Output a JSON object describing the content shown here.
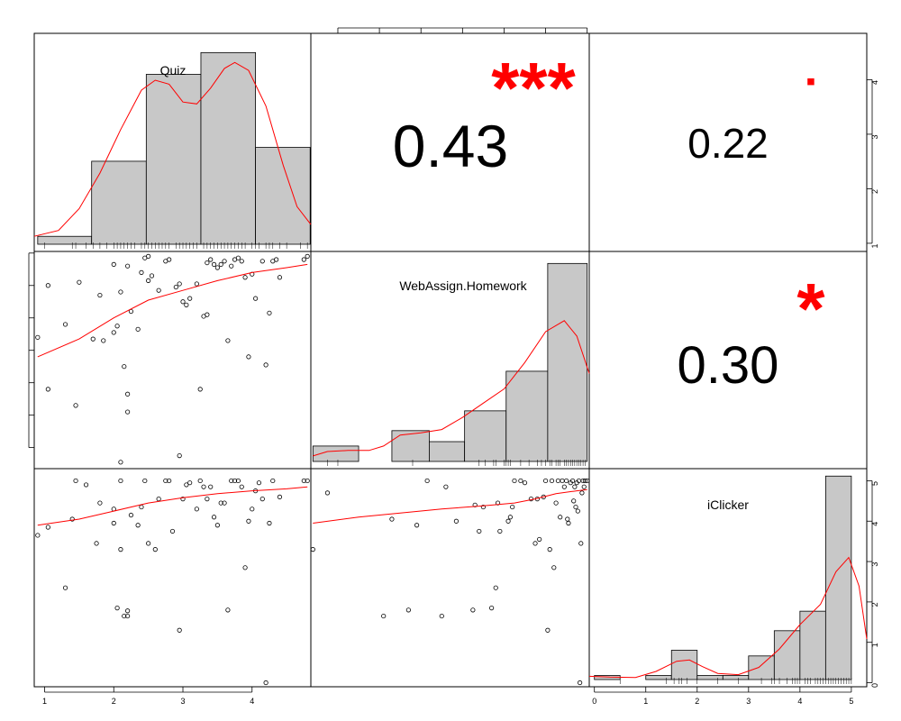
{
  "chart_data": {
    "type": "scatter-matrix",
    "variables": [
      "Quiz",
      "WebAssign.Homework",
      "iClicker"
    ],
    "axis_ticks": {
      "Quiz": [
        1,
        2,
        3,
        4
      ],
      "WebAssign.Homework": [
        2,
        4,
        6,
        8,
        10,
        12,
        14
      ],
      "iClicker": [
        0,
        1,
        2,
        3,
        4,
        5
      ]
    },
    "ranges": {
      "Quiz": [
        0.85,
        4.85
      ],
      "WebAssign.Homework": [
        0.7,
        14.1
      ],
      "iClicker": [
        -0.1,
        5.3
      ]
    },
    "correlations": [
      {
        "row": 0,
        "col": 1,
        "value": "0.43",
        "stars": "***"
      },
      {
        "row": 0,
        "col": 2,
        "value": "0.22",
        "stars": "▪"
      },
      {
        "row": 1,
        "col": 2,
        "value": "0.30",
        "stars": "*"
      }
    ],
    "histograms": {
      "Quiz": {
        "breaks": [
          0.9,
          1.68,
          2.47,
          3.26,
          4.05,
          4.84
        ],
        "counts": [
          0.2,
          2.1,
          4.3,
          4.85,
          2.45
        ],
        "density": [
          [
            0.85,
            0.2
          ],
          [
            1.2,
            0.35
          ],
          [
            1.5,
            0.9
          ],
          [
            1.8,
            1.8
          ],
          [
            2.1,
            2.9
          ],
          [
            2.4,
            3.9
          ],
          [
            2.6,
            4.15
          ],
          [
            2.8,
            4.05
          ],
          [
            3.0,
            3.6
          ],
          [
            3.2,
            3.55
          ],
          [
            3.4,
            3.95
          ],
          [
            3.6,
            4.45
          ],
          [
            3.75,
            4.6
          ],
          [
            3.95,
            4.4
          ],
          [
            4.2,
            3.5
          ],
          [
            4.45,
            2.0
          ],
          [
            4.65,
            0.95
          ],
          [
            4.85,
            0.5
          ]
        ]
      },
      "WebAssign.Homework": {
        "breaks": [
          0.8,
          3.0,
          4.6,
          6.4,
          8.1,
          10.1,
          12.1,
          14.0
        ],
        "counts": [
          0.7,
          0.0,
          1.4,
          0.9,
          2.3,
          4.1,
          9.0
        ],
        "density": [
          [
            0.8,
            0.25
          ],
          [
            1.5,
            0.45
          ],
          [
            2.5,
            0.5
          ],
          [
            3.5,
            0.5
          ],
          [
            4.2,
            0.7
          ],
          [
            5.0,
            1.2
          ],
          [
            6.0,
            1.3
          ],
          [
            7.0,
            1.45
          ],
          [
            8.0,
            2.0
          ],
          [
            9.0,
            2.65
          ],
          [
            10.0,
            3.3
          ],
          [
            11.0,
            4.5
          ],
          [
            12.0,
            5.9
          ],
          [
            12.9,
            6.4
          ],
          [
            13.5,
            5.7
          ],
          [
            14.1,
            4.0
          ]
        ]
      },
      "iClicker": {
        "breaks": [
          0.0,
          0.5,
          1.0,
          1.5,
          2.0,
          2.5,
          3.0,
          3.5,
          4.0,
          4.5,
          5.0
        ],
        "counts": [
          0.1,
          0.0,
          0.1,
          0.72,
          0.1,
          0.1,
          0.58,
          1.2,
          1.68,
          5.0
        ],
        "density": [
          [
            -0.1,
            0.08
          ],
          [
            0.3,
            0.06
          ],
          [
            0.8,
            0.05
          ],
          [
            1.2,
            0.2
          ],
          [
            1.6,
            0.45
          ],
          [
            1.85,
            0.48
          ],
          [
            2.1,
            0.32
          ],
          [
            2.4,
            0.15
          ],
          [
            2.8,
            0.12
          ],
          [
            3.2,
            0.3
          ],
          [
            3.6,
            0.75
          ],
          [
            4.0,
            1.35
          ],
          [
            4.4,
            1.85
          ],
          [
            4.7,
            2.65
          ],
          [
            4.95,
            3.0
          ],
          [
            5.15,
            2.3
          ],
          [
            5.3,
            1.0
          ]
        ]
      }
    },
    "rug": {
      "Quiz": [
        1.0,
        1.4,
        1.45,
        1.6,
        1.7,
        1.8,
        1.9,
        2.0,
        2.05,
        2.1,
        2.15,
        2.2,
        2.25,
        2.3,
        2.4,
        2.45,
        2.5,
        2.55,
        2.6,
        2.65,
        2.7,
        2.75,
        2.8,
        2.9,
        2.95,
        3.0,
        3.05,
        3.1,
        3.15,
        3.2,
        3.3,
        3.35,
        3.4,
        3.45,
        3.5,
        3.55,
        3.6,
        3.65,
        3.7,
        3.75,
        3.8,
        3.85,
        3.9,
        4.0,
        4.05,
        4.1,
        4.2,
        4.25,
        4.3,
        4.4,
        4.5,
        4.7,
        4.8
      ],
      "WebAssign.Homework": [
        1.5,
        2.0,
        5.6,
        8.8,
        9.1,
        9.5,
        9.6,
        10.0,
        10.1,
        10.2,
        10.3,
        10.8,
        11.2,
        11.6,
        11.8,
        12.0,
        12.2,
        12.3,
        12.5,
        12.6,
        12.7,
        12.9,
        13.0,
        13.1,
        13.2,
        13.3,
        13.4,
        13.5,
        13.6,
        13.7,
        13.8,
        13.9
      ],
      "iClicker": [
        0.5,
        1.4,
        1.55,
        1.65,
        1.7,
        1.8,
        2.0,
        2.4,
        2.8,
        3.25,
        3.45,
        3.5,
        3.6,
        3.75,
        3.85,
        3.9,
        3.95,
        4.0,
        4.1,
        4.15,
        4.2,
        4.3,
        4.35,
        4.4,
        4.45,
        4.5,
        4.55,
        4.6,
        4.65,
        4.7,
        4.75,
        4.8,
        4.85,
        4.9,
        4.95,
        5.0
      ]
    },
    "scatter": {
      "quiz_vs_homework": [
        [
          0.9,
          8.8
        ],
        [
          1.05,
          5.6
        ],
        [
          1.05,
          12.0
        ],
        [
          1.3,
          9.6
        ],
        [
          1.45,
          4.6
        ],
        [
          1.5,
          12.2
        ],
        [
          1.7,
          8.7
        ],
        [
          1.8,
          11.4
        ],
        [
          1.85,
          8.6
        ],
        [
          2.0,
          9.1
        ],
        [
          2.0,
          13.3
        ],
        [
          2.05,
          9.5
        ],
        [
          2.1,
          1.1
        ],
        [
          2.1,
          11.6
        ],
        [
          2.15,
          7.0
        ],
        [
          2.2,
          13.2
        ],
        [
          2.2,
          5.3
        ],
        [
          2.2,
          4.2
        ],
        [
          2.25,
          10.4
        ],
        [
          2.35,
          9.3
        ],
        [
          2.4,
          12.8
        ],
        [
          2.45,
          13.7
        ],
        [
          2.5,
          12.3
        ],
        [
          2.5,
          13.8
        ],
        [
          2.55,
          12.6
        ],
        [
          2.65,
          11.7
        ],
        [
          2.75,
          13.5
        ],
        [
          2.8,
          13.6
        ],
        [
          2.9,
          11.9
        ],
        [
          2.95,
          1.5
        ],
        [
          2.95,
          12.1
        ],
        [
          3.0,
          11.0
        ],
        [
          3.05,
          10.8
        ],
        [
          3.1,
          11.2
        ],
        [
          3.2,
          12.1
        ],
        [
          3.25,
          5.6
        ],
        [
          3.3,
          10.1
        ],
        [
          3.35,
          10.2
        ],
        [
          3.35,
          13.4
        ],
        [
          3.4,
          13.6
        ],
        [
          3.45,
          13.3
        ],
        [
          3.5,
          13.1
        ],
        [
          3.55,
          13.3
        ],
        [
          3.6,
          13.5
        ],
        [
          3.65,
          8.6
        ],
        [
          3.7,
          13.2
        ],
        [
          3.75,
          13.6
        ],
        [
          3.8,
          13.7
        ],
        [
          3.85,
          13.5
        ],
        [
          3.9,
          12.5
        ],
        [
          3.95,
          7.6
        ],
        [
          4.0,
          12.7
        ],
        [
          4.05,
          11.2
        ],
        [
          4.15,
          13.5
        ],
        [
          4.2,
          7.1
        ],
        [
          4.25,
          10.3
        ],
        [
          4.3,
          13.5
        ],
        [
          4.35,
          13.6
        ],
        [
          4.4,
          12.5
        ],
        [
          4.75,
          13.6
        ],
        [
          4.8,
          13.8
        ]
      ],
      "quiz_vs_iclicker": [
        [
          0.9,
          3.65
        ],
        [
          1.05,
          3.85
        ],
        [
          1.3,
          2.35
        ],
        [
          1.4,
          4.05
        ],
        [
          1.45,
          5.0
        ],
        [
          1.6,
          4.9
        ],
        [
          1.75,
          3.45
        ],
        [
          1.8,
          4.45
        ],
        [
          2.0,
          3.95
        ],
        [
          2.0,
          4.3
        ],
        [
          2.05,
          1.85
        ],
        [
          2.1,
          3.3
        ],
        [
          2.1,
          5.0
        ],
        [
          2.15,
          1.65
        ],
        [
          2.2,
          1.65
        ],
        [
          2.2,
          1.78
        ],
        [
          2.25,
          4.15
        ],
        [
          2.35,
          3.9
        ],
        [
          2.4,
          4.35
        ],
        [
          2.45,
          5.0
        ],
        [
          2.5,
          3.45
        ],
        [
          2.6,
          3.3
        ],
        [
          2.65,
          4.55
        ],
        [
          2.75,
          5.0
        ],
        [
          2.8,
          5.0
        ],
        [
          2.85,
          3.75
        ],
        [
          2.95,
          1.3
        ],
        [
          3.0,
          4.55
        ],
        [
          3.05,
          4.9
        ],
        [
          3.1,
          4.95
        ],
        [
          3.2,
          4.3
        ],
        [
          3.25,
          5.0
        ],
        [
          3.3,
          4.85
        ],
        [
          3.35,
          4.55
        ],
        [
          3.4,
          4.85
        ],
        [
          3.45,
          4.1
        ],
        [
          3.5,
          3.9
        ],
        [
          3.55,
          4.45
        ],
        [
          3.6,
          4.45
        ],
        [
          3.65,
          1.8
        ],
        [
          3.7,
          5.0
        ],
        [
          3.75,
          5.0
        ],
        [
          3.8,
          5.0
        ],
        [
          3.85,
          4.85
        ],
        [
          3.9,
          2.85
        ],
        [
          3.95,
          4.0
        ],
        [
          4.0,
          4.3
        ],
        [
          4.05,
          4.75
        ],
        [
          4.1,
          4.95
        ],
        [
          4.15,
          4.55
        ],
        [
          4.2,
          0.0
        ],
        [
          4.25,
          3.95
        ],
        [
          4.3,
          5.0
        ],
        [
          4.4,
          4.6
        ],
        [
          4.75,
          5.0
        ],
        [
          4.8,
          5.0
        ]
      ],
      "homework_vs_iclicker": [
        [
          0.8,
          3.3
        ],
        [
          1.5,
          4.7
        ],
        [
          4.2,
          1.65
        ],
        [
          4.6,
          4.05
        ],
        [
          5.4,
          1.8
        ],
        [
          5.8,
          3.9
        ],
        [
          6.3,
          5.0
        ],
        [
          7.0,
          1.65
        ],
        [
          7.2,
          4.85
        ],
        [
          7.7,
          4.0
        ],
        [
          8.5,
          1.8
        ],
        [
          8.6,
          4.4
        ],
        [
          8.8,
          3.75
        ],
        [
          9.0,
          4.35
        ],
        [
          9.4,
          1.85
        ],
        [
          9.6,
          2.35
        ],
        [
          9.7,
          4.45
        ],
        [
          9.8,
          3.75
        ],
        [
          10.2,
          4.0
        ],
        [
          10.3,
          4.1
        ],
        [
          10.4,
          4.35
        ],
        [
          10.5,
          5.0
        ],
        [
          10.8,
          5.0
        ],
        [
          11.0,
          4.95
        ],
        [
          11.3,
          4.55
        ],
        [
          11.5,
          3.45
        ],
        [
          11.6,
          4.55
        ],
        [
          11.7,
          3.55
        ],
        [
          11.9,
          4.6
        ],
        [
          12.0,
          5.0
        ],
        [
          12.1,
          1.3
        ],
        [
          12.2,
          3.3
        ],
        [
          12.3,
          5.0
        ],
        [
          12.4,
          2.85
        ],
        [
          12.5,
          4.45
        ],
        [
          12.6,
          5.0
        ],
        [
          12.7,
          4.1
        ],
        [
          12.8,
          5.0
        ],
        [
          12.9,
          4.85
        ],
        [
          13.0,
          5.0
        ],
        [
          13.05,
          4.05
        ],
        [
          13.1,
          3.95
        ],
        [
          13.2,
          4.95
        ],
        [
          13.3,
          5.0
        ],
        [
          13.35,
          4.5
        ],
        [
          13.4,
          4.85
        ],
        [
          13.45,
          4.35
        ],
        [
          13.5,
          4.95
        ],
        [
          13.55,
          4.25
        ],
        [
          13.6,
          5.0
        ],
        [
          13.65,
          0.0
        ],
        [
          13.7,
          3.45
        ],
        [
          13.75,
          4.7
        ],
        [
          13.8,
          5.0
        ],
        [
          13.85,
          4.85
        ],
        [
          13.9,
          5.0
        ],
        [
          14.0,
          5.0
        ]
      ]
    },
    "loess": {
      "quiz_vs_homework": [
        [
          0.9,
          7.6
        ],
        [
          1.5,
          8.7
        ],
        [
          2.0,
          10.0
        ],
        [
          2.5,
          11.1
        ],
        [
          3.0,
          11.7
        ],
        [
          3.5,
          12.3
        ],
        [
          4.0,
          12.8
        ],
        [
          4.5,
          13.1
        ],
        [
          4.8,
          13.3
        ]
      ],
      "quiz_vs_iclicker": [
        [
          0.9,
          3.9
        ],
        [
          1.5,
          4.05
        ],
        [
          2.0,
          4.25
        ],
        [
          2.5,
          4.45
        ],
        [
          3.0,
          4.58
        ],
        [
          3.5,
          4.68
        ],
        [
          4.0,
          4.75
        ],
        [
          4.5,
          4.8
        ],
        [
          4.8,
          4.85
        ]
      ],
      "homework_vs_iclicker": [
        [
          0.8,
          3.95
        ],
        [
          3.0,
          4.1
        ],
        [
          5.0,
          4.2
        ],
        [
          7.0,
          4.3
        ],
        [
          9.0,
          4.38
        ],
        [
          10.5,
          4.45
        ],
        [
          11.5,
          4.55
        ],
        [
          12.5,
          4.68
        ],
        [
          13.5,
          4.75
        ],
        [
          14.0,
          4.78
        ]
      ]
    },
    "colors": {
      "fit": "#ff0000",
      "stars": "#ff0000",
      "bar": "#c8c8c8",
      "ink": "#000000"
    }
  }
}
